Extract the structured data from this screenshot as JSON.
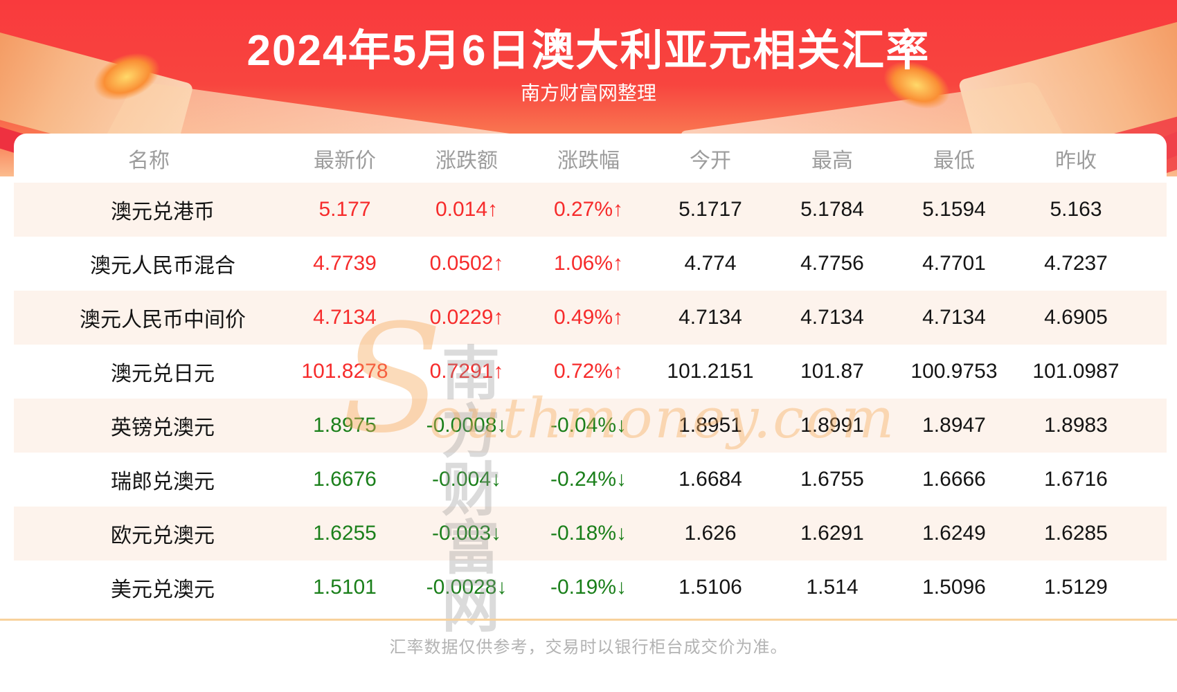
{
  "header": {
    "title": "2024年5月6日澳大利亚元相关汇率",
    "subtitle": "南方财富网整理"
  },
  "table": {
    "columns": [
      "名称",
      "最新价",
      "涨跌额",
      "涨跌幅",
      "今开",
      "最高",
      "最低",
      "昨收"
    ],
    "rows": [
      {
        "name": "澳元兑港币",
        "latest": "5.177",
        "change": "0.014↑",
        "change_pct": "0.27%↑",
        "open": "5.1717",
        "high": "5.1784",
        "low": "5.1594",
        "prev_close": "5.163",
        "direction": "up"
      },
      {
        "name": "澳元人民币混合",
        "latest": "4.7739",
        "change": "0.0502↑",
        "change_pct": "1.06%↑",
        "open": "4.774",
        "high": "4.7756",
        "low": "4.7701",
        "prev_close": "4.7237",
        "direction": "up"
      },
      {
        "name": "澳元人民币中间价",
        "latest": "4.7134",
        "change": "0.0229↑",
        "change_pct": "0.49%↑",
        "open": "4.7134",
        "high": "4.7134",
        "low": "4.7134",
        "prev_close": "4.6905",
        "direction": "up"
      },
      {
        "name": "澳元兑日元",
        "latest": "101.8278",
        "change": "0.7291↑",
        "change_pct": "0.72%↑",
        "open": "101.2151",
        "high": "101.87",
        "low": "100.9753",
        "prev_close": "101.0987",
        "direction": "up"
      },
      {
        "name": "英镑兑澳元",
        "latest": "1.8975",
        "change": "-0.0008↓",
        "change_pct": "-0.04%↓",
        "open": "1.8951",
        "high": "1.8991",
        "low": "1.8947",
        "prev_close": "1.8983",
        "direction": "down"
      },
      {
        "name": "瑞郎兑澳元",
        "latest": "1.6676",
        "change": "-0.004↓",
        "change_pct": "-0.24%↓",
        "open": "1.6684",
        "high": "1.6755",
        "low": "1.6666",
        "prev_close": "1.6716",
        "direction": "down"
      },
      {
        "name": "欧元兑澳元",
        "latest": "1.6255",
        "change": "-0.003↓",
        "change_pct": "-0.18%↓",
        "open": "1.626",
        "high": "1.6291",
        "low": "1.6249",
        "prev_close": "1.6285",
        "direction": "down"
      },
      {
        "name": "美元兑澳元",
        "latest": "1.5101",
        "change": "-0.0028↓",
        "change_pct": "-0.19%↓",
        "open": "1.5106",
        "high": "1.514",
        "low": "1.5096",
        "prev_close": "1.5129",
        "direction": "down"
      }
    ]
  },
  "watermark": {
    "s_glyph": "S",
    "cjk": "南方财富网",
    "latin": "outhmoney.com"
  },
  "footer": {
    "disclaimer": "汇率数据仅供参考，交易时以银行柜台成交价为准。"
  },
  "colors": {
    "up": "#f62b2b",
    "down": "#1a7f1a",
    "banner_red": "#f93a3d",
    "row_alt": "#fdf3ec",
    "divider": "#f8d29c",
    "header_text": "#9c9c9c"
  },
  "chart_data": {
    "type": "table",
    "title": "2024年5月6日澳大利亚元相关汇率",
    "subtitle": "南方财富网整理",
    "columns": [
      "名称",
      "最新价",
      "涨跌额",
      "涨跌幅",
      "今开",
      "最高",
      "最低",
      "昨收"
    ],
    "rows": [
      [
        "澳元兑港币",
        "5.177",
        "0.014↑",
        "0.27%↑",
        "5.1717",
        "5.1784",
        "5.1594",
        "5.163"
      ],
      [
        "澳元人民币混合",
        "4.7739",
        "0.0502↑",
        "1.06%↑",
        "4.774",
        "4.7756",
        "4.7701",
        "4.7237"
      ],
      [
        "澳元人民币中间价",
        "4.7134",
        "0.0229↑",
        "0.49%↑",
        "4.7134",
        "4.7134",
        "4.7134",
        "4.6905"
      ],
      [
        "澳元兑日元",
        "101.8278",
        "0.7291↑",
        "0.72%↑",
        "101.2151",
        "101.87",
        "100.9753",
        "101.0987"
      ],
      [
        "英镑兑澳元",
        "1.8975",
        "-0.0008↓",
        "-0.04%↓",
        "1.8951",
        "1.8991",
        "1.8947",
        "1.8983"
      ],
      [
        "瑞郎兑澳元",
        "1.6676",
        "-0.004↓",
        "-0.24%↓",
        "1.6684",
        "1.6755",
        "1.6666",
        "1.6716"
      ],
      [
        "欧元兑澳元",
        "1.6255",
        "-0.003↓",
        "-0.18%↓",
        "1.626",
        "1.6291",
        "1.6249",
        "1.6285"
      ],
      [
        "美元兑澳元",
        "1.5101",
        "-0.0028↓",
        "-0.19%↓",
        "1.5106",
        "1.514",
        "1.5096",
        "1.5129"
      ]
    ],
    "row_directions": [
      "up",
      "up",
      "up",
      "up",
      "down",
      "down",
      "down",
      "down"
    ],
    "notes": "red = rise, green = fall"
  }
}
